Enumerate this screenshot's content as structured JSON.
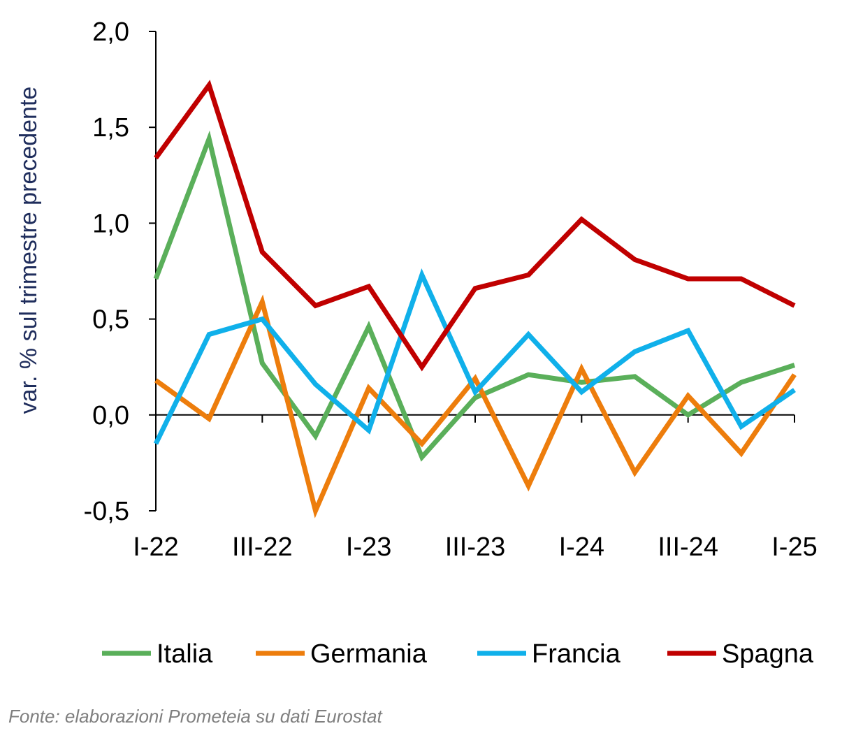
{
  "chart_data": {
    "type": "line",
    "ylabel": "var. % sul trimestre precedente",
    "ylim": [
      -0.5,
      2.0
    ],
    "yticks": [
      "2,0",
      "1,5",
      "1,0",
      "0,5",
      "0,0",
      "-0,5"
    ],
    "ytick_values": [
      2.0,
      1.5,
      1.0,
      0.5,
      0.0,
      -0.5
    ],
    "x": [
      "I-22",
      "II-22",
      "III-22",
      "IV-22",
      "I-23",
      "II-23",
      "III-23",
      "IV-23",
      "I-24",
      "II-24",
      "III-24",
      "IV-24",
      "I-25"
    ],
    "xtick_labels": [
      "I-22",
      "",
      "III-22",
      "",
      "I-23",
      "",
      "III-23",
      "",
      "I-24",
      "",
      "III-24",
      "",
      "I-25"
    ],
    "grid": false,
    "legend_position": "bottom",
    "series": [
      {
        "name": "Italia",
        "color": "#5aaf5a",
        "values": [
          0.71,
          1.44,
          0.27,
          -0.11,
          0.46,
          -0.22,
          0.09,
          0.21,
          0.17,
          0.2,
          0.0,
          0.17,
          0.26
        ]
      },
      {
        "name": "Germania",
        "color": "#ed7d0c",
        "values": [
          0.18,
          -0.02,
          0.59,
          -0.5,
          0.14,
          -0.15,
          0.19,
          -0.37,
          0.24,
          -0.3,
          0.1,
          -0.2,
          0.21
        ]
      },
      {
        "name": "Francia",
        "color": "#10b0ea",
        "values": [
          -0.15,
          0.42,
          0.5,
          0.16,
          -0.08,
          0.73,
          0.12,
          0.42,
          0.12,
          0.33,
          0.44,
          -0.06,
          0.13
        ]
      },
      {
        "name": "Spagna",
        "color": "#c00000",
        "values": [
          1.34,
          1.72,
          0.85,
          0.57,
          0.67,
          0.25,
          0.66,
          0.73,
          1.02,
          0.81,
          0.71,
          0.71,
          0.57
        ]
      }
    ]
  },
  "source_note": "Fonte:  elaborazioni Prometeia su dati Eurostat"
}
